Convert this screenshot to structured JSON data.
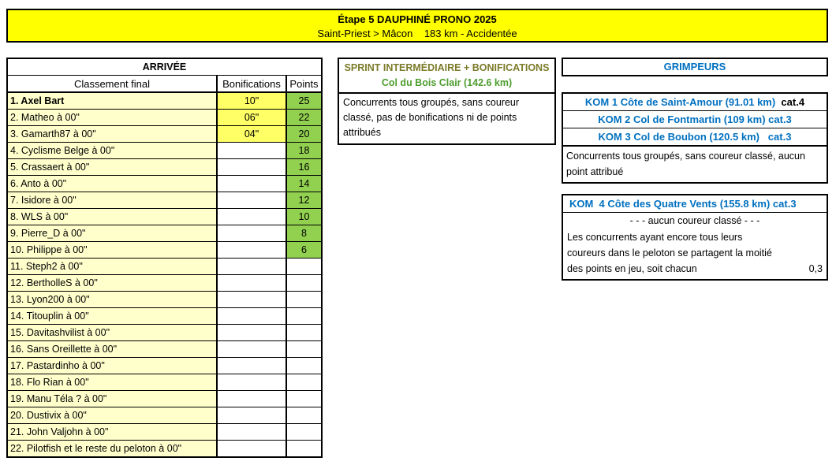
{
  "banner": {
    "title": "Étape 5 DAUPHINÉ PRONO 2025",
    "subtitle": "Saint-Priest > Mâcon    183 km - Accidentée"
  },
  "arrivee": {
    "title": "ARRIVÉE",
    "columns": [
      "Classement final",
      "Bonifications",
      "Points"
    ],
    "rows": [
      {
        "name": "1. Axel Bart",
        "bonification": "10\"",
        "points": "25"
      },
      {
        "name": "2. Matheo à 00\"",
        "bonification": "06\"",
        "points": "22"
      },
      {
        "name": "3. Gamarth87 à 00\"",
        "bonification": "04\"",
        "points": "20"
      },
      {
        "name": "4. Cyclisme Belge à 00\"",
        "bonification": "",
        "points": "18"
      },
      {
        "name": "5. Crassaert à 00\"",
        "bonification": "",
        "points": "16"
      },
      {
        "name": "6. Anto à 00\"",
        "bonification": "",
        "points": "14"
      },
      {
        "name": "7. Isidore à 00\"",
        "bonification": "",
        "points": "12"
      },
      {
        "name": "8. WLS à 00\"",
        "bonification": "",
        "points": "10"
      },
      {
        "name": "9. Pierre_D à 00\"",
        "bonification": "",
        "points": "8"
      },
      {
        "name": "10. Philippe à 00\"",
        "bonification": "",
        "points": "6"
      },
      {
        "name": "11. Steph2 à 00\"",
        "bonification": "",
        "points": ""
      },
      {
        "name": "12. BertholleS à 00\"",
        "bonification": "",
        "points": ""
      },
      {
        "name": "13. Lyon200 à 00\"",
        "bonification": "",
        "points": ""
      },
      {
        "name": "14. Titouplin à 00\"",
        "bonification": "",
        "points": ""
      },
      {
        "name": "15. Davitashvilist à 00\"",
        "bonification": "",
        "points": ""
      },
      {
        "name": "16. Sans Oreillette à 00\"",
        "bonification": "",
        "points": ""
      },
      {
        "name": "17. Pastardinho à 00\"",
        "bonification": "",
        "points": ""
      },
      {
        "name": "18. Flo Rian à 00\"",
        "bonification": "",
        "points": ""
      },
      {
        "name": "19. Manu Téla ? à 00\"",
        "bonification": "",
        "points": ""
      },
      {
        "name": "20. Dustivix à 00\"",
        "bonification": "",
        "points": ""
      },
      {
        "name": "21. John Valjohn à 00\"",
        "bonification": "",
        "points": ""
      },
      {
        "name": "22. Pilotfish et le reste du peloton à 00\"",
        "bonification": "",
        "points": ""
      }
    ]
  },
  "sprint": {
    "title": "SPRINT INTERMÉDIAIRE + BONIFICATIONS",
    "subtitle": "Col du Bois Clair (142.6 km)",
    "body": "Concurrents tous groupés, sans coureur classé, pas de bonifications ni de points attribués"
  },
  "grimpeurs": {
    "title": "GRIMPEURS",
    "kom_box": {
      "items": [
        {
          "label": "KOM 1 Côte de Saint-Amour (91.01 km)",
          "suffix": "  cat.4",
          "suffix_color": "#000000"
        },
        {
          "label": "KOM 2 Col de Fontmartin (109 km) cat.3",
          "suffix": "",
          "suffix_color": "#0070c0"
        },
        {
          "label": "KOM 3 Col de Boubon (120.5 km)   cat.3",
          "suffix": "",
          "suffix_color": "#0070c0"
        }
      ],
      "note": "Concurrents tous groupés, sans coureur classé, aucun point attribué"
    },
    "kom4_box": {
      "title": "KOM  4 Côte des Quatre Vents (155.8 km) cat.3",
      "no_rider": "- - - aucun coureur classé - - -",
      "note_lines": [
        "Les concurrents ayant encore tous leurs",
        "coureurs dans le peloton se partagent la moitié",
        "des points en jeu, soit chacun"
      ],
      "value": "0,3"
    }
  },
  "colors": {
    "banner_yellow": "#ffff00",
    "bonus_yellow": "#ffff66",
    "row_cream": "#ffffcc",
    "points_green": "#92d050",
    "text_blue": "#0070c0",
    "text_olive": "#7b7b2a",
    "text_green": "#4e9d2e"
  }
}
